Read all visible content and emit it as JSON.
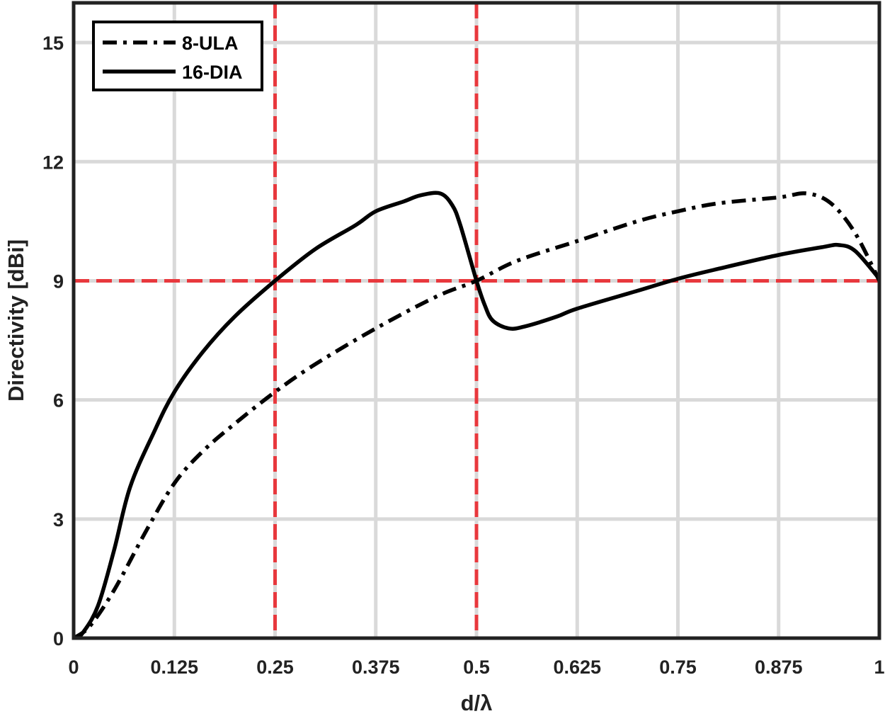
{
  "chart_data": {
    "type": "line",
    "xlabel": "d/λ",
    "ylabel": "Directivity [dBi]",
    "xlim": [
      0,
      1
    ],
    "ylim": [
      0,
      16
    ],
    "xticks": [
      0,
      0.125,
      0.25,
      0.375,
      0.5,
      0.625,
      0.75,
      0.875,
      1
    ],
    "xtick_labels": [
      "0",
      "0.125",
      "0.25",
      "0.375",
      "0.5",
      "0.625",
      "0.75",
      "0.875",
      "1"
    ],
    "yticks": [
      0,
      3,
      6,
      9,
      12,
      15
    ],
    "ytick_labels": [
      "0",
      "3",
      "6",
      "9",
      "12",
      "15"
    ],
    "grid": true,
    "legend_position": "top-left",
    "reference_lines": {
      "color": "#e8383d",
      "vertical_x": [
        0.25,
        0.5
      ],
      "horizontal_y": [
        9
      ]
    },
    "series": [
      {
        "name": "8-ULA",
        "style": "dashdot",
        "color": "#000000",
        "x": [
          0,
          0.02,
          0.05,
          0.09,
          0.125,
          0.16,
          0.2,
          0.25,
          0.3,
          0.375,
          0.45,
          0.5,
          0.55,
          0.625,
          0.7,
          0.75,
          0.8,
          0.875,
          0.91,
          0.94,
          0.97,
          1.0
        ],
        "y": [
          0,
          0.3,
          1.2,
          2.7,
          3.9,
          4.7,
          5.4,
          6.2,
          6.9,
          7.8,
          8.6,
          9.0,
          9.5,
          10.0,
          10.5,
          10.75,
          10.95,
          11.1,
          11.2,
          10.95,
          10.2,
          9.0
        ]
      },
      {
        "name": "16-DIA",
        "style": "solid",
        "color": "#000000",
        "x": [
          0,
          0.01,
          0.03,
          0.05,
          0.07,
          0.1,
          0.125,
          0.16,
          0.2,
          0.25,
          0.3,
          0.35,
          0.375,
          0.41,
          0.43,
          0.455,
          0.47,
          0.48,
          0.5,
          0.51,
          0.52,
          0.54,
          0.56,
          0.6,
          0.625,
          0.7,
          0.75,
          0.8,
          0.875,
          0.93,
          0.95,
          0.97,
          1.0
        ],
        "y": [
          0,
          0.1,
          0.8,
          2.2,
          3.8,
          5.2,
          6.2,
          7.2,
          8.1,
          9.0,
          9.8,
          10.4,
          10.75,
          11.0,
          11.15,
          11.2,
          10.9,
          10.4,
          9.0,
          8.4,
          8.0,
          7.8,
          7.85,
          8.1,
          8.3,
          8.75,
          9.05,
          9.3,
          9.65,
          9.85,
          9.9,
          9.75,
          9.05
        ]
      }
    ]
  }
}
